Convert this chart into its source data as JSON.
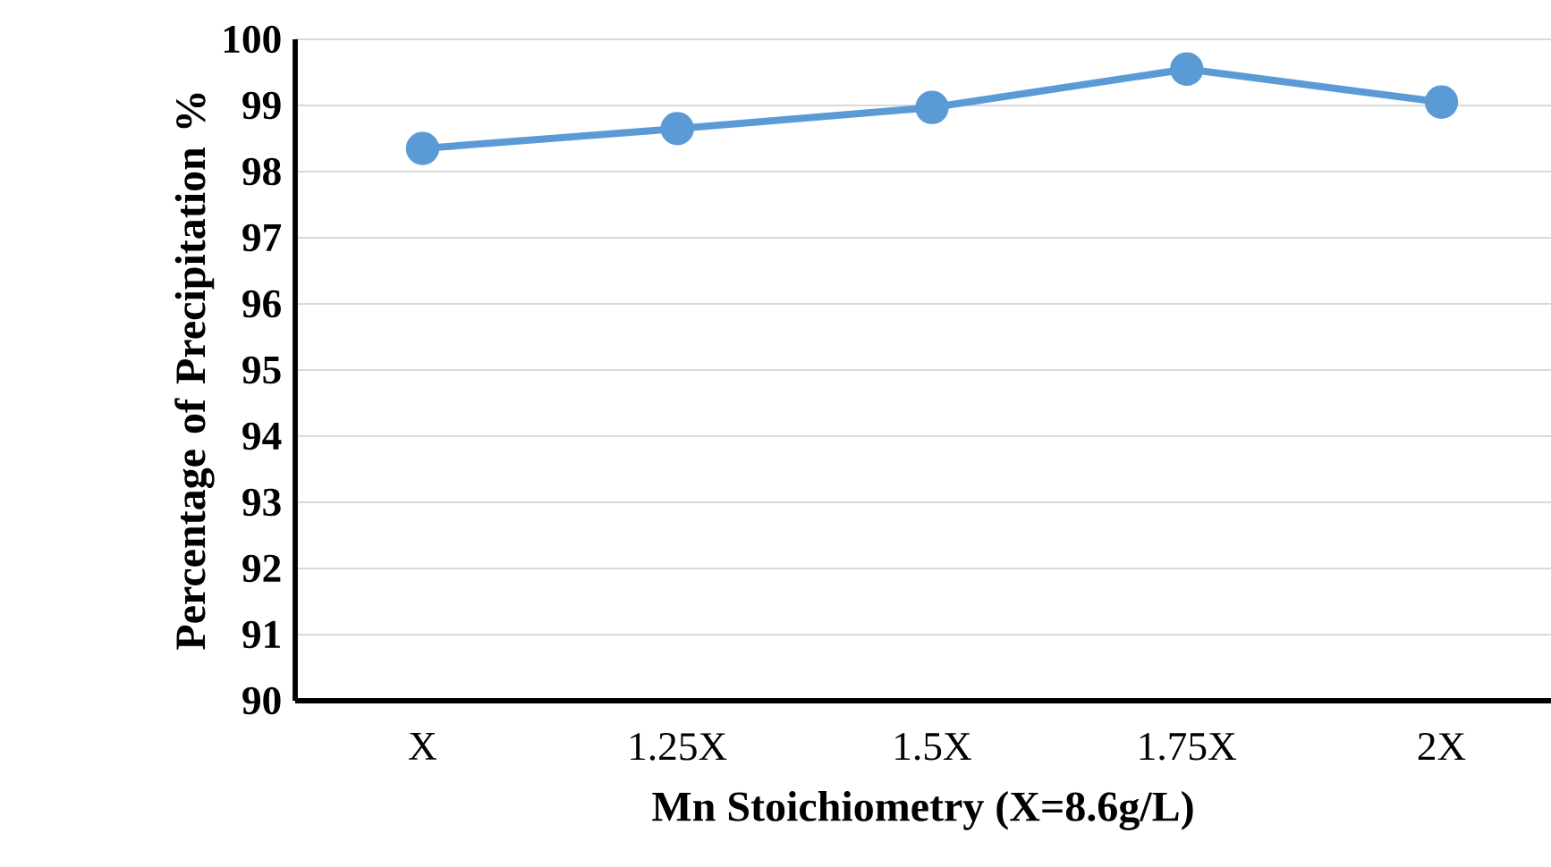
{
  "chart_data": {
    "type": "line",
    "xlabel": "Mn Stoichiometry (X=8.6g/L)",
    "ylabel": "Percentage of Precipitation %",
    "categories": [
      "X",
      "1.25X",
      "1.5X",
      "1.75X",
      "2X"
    ],
    "values": [
      98.35,
      98.65,
      98.97,
      99.55,
      99.05
    ],
    "color": "#5b9bd5",
    "ylim": [
      90,
      100
    ],
    "yticks": [
      90,
      91,
      92,
      93,
      94,
      95,
      96,
      97,
      98,
      99,
      100
    ],
    "grid": "y",
    "marker": "circle",
    "line_style": "solid"
  }
}
